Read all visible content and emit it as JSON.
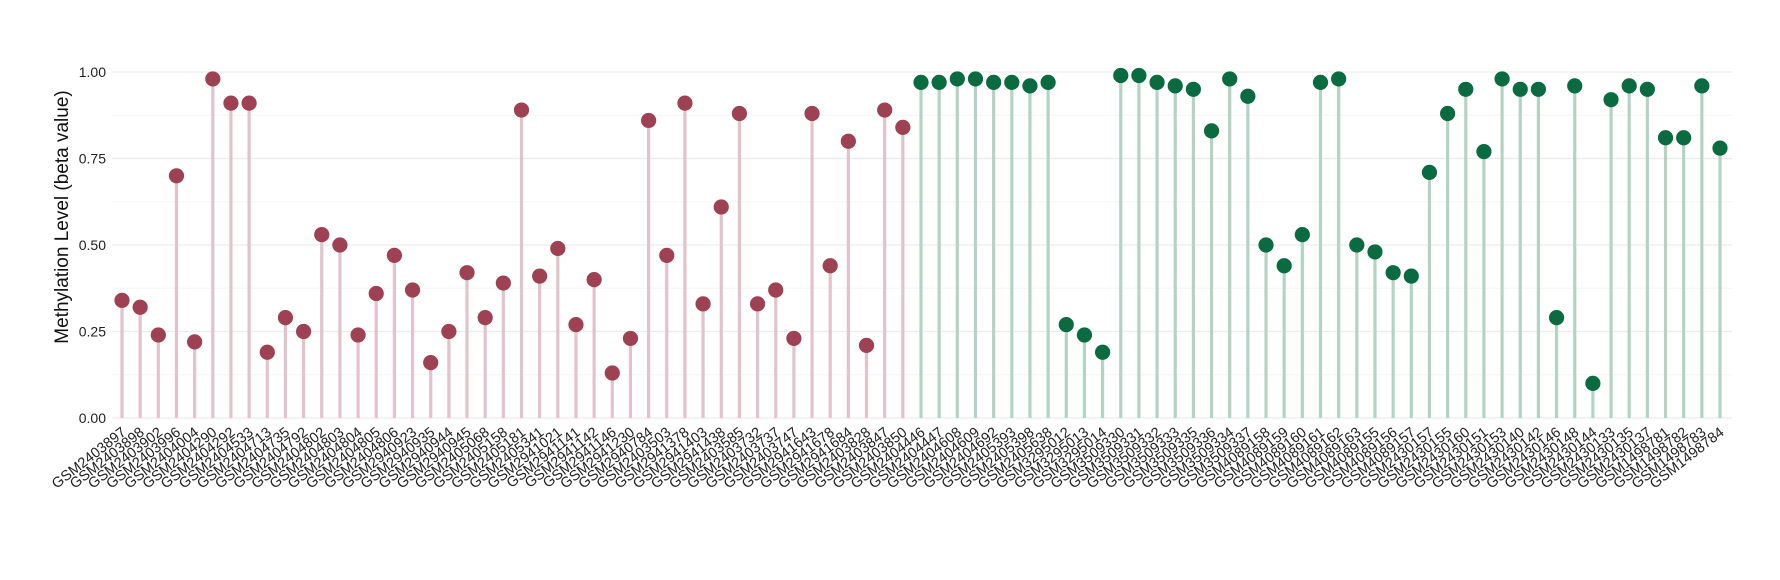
{
  "chart_data": {
    "type": "lollipop",
    "xlabel": "",
    "ylabel": "Methylation Level (beta value)",
    "ylim": [
      0,
      1
    ],
    "yticks": [
      "0.00",
      "0.25",
      "0.50",
      "0.75",
      "1.00"
    ],
    "grid": true,
    "legend": "none",
    "colors": {
      "group1_stem": "#e3c2cb",
      "group1_dot": "#9e4152",
      "group2_stem": "#b3d4c5",
      "group2_dot": "#0b6b40",
      "grid_major": "#ececec",
      "grid_minor": "#f6f6f6"
    },
    "series": [
      {
        "color_key": "group1",
        "categories": [
          "GSM2403897",
          "GSM2403898",
          "GSM2403902",
          "GSM2403996",
          "GSM2404004",
          "GSM2404290",
          "GSM2404292",
          "GSM2404533",
          "GSM2404713",
          "GSM2404735",
          "GSM2404792",
          "GSM2404802",
          "GSM2404803",
          "GSM2404804",
          "GSM2404805",
          "GSM2404806",
          "GSM2940923",
          "GSM2940935",
          "GSM2940944",
          "GSM2940945",
          "GSM2405068",
          "GSM2405158",
          "GSM2405181",
          "GSM2405341",
          "GSM2941021",
          "GSM2941141",
          "GSM2941142",
          "GSM2941146",
          "GSM2941230",
          "GSM2940784",
          "GSM2403503",
          "GSM2941378",
          "GSM2941403",
          "GSM2941438",
          "GSM2403585",
          "GSM2403732",
          "GSM2403737",
          "GSM2403747",
          "GSM2941643",
          "GSM2941678",
          "GSM2941684",
          "GSM2403828",
          "GSM2403847",
          "GSM2403850"
        ],
        "values": [
          0.34,
          0.32,
          0.24,
          0.7,
          0.22,
          0.98,
          0.91,
          0.91,
          0.19,
          0.29,
          0.25,
          0.53,
          0.5,
          0.24,
          0.36,
          0.47,
          0.37,
          0.16,
          0.25,
          0.42,
          0.29,
          0.39,
          0.89,
          0.41,
          0.49,
          0.27,
          0.4,
          0.13,
          0.23,
          0.86,
          0.47,
          0.91,
          0.33,
          0.61,
          0.88,
          0.33,
          0.37,
          0.23,
          0.88,
          0.44,
          0.8,
          0.21,
          0.89,
          0.84
        ]
      },
      {
        "color_key": "group2",
        "categories": [
          "GSM2404446",
          "GSM2404447",
          "GSM2404608",
          "GSM2404609",
          "GSM2404692",
          "GSM2405393",
          "GSM2405398",
          "GSM2405638",
          "GSM3295012",
          "GSM3295013",
          "GSM3295014",
          "GSM3509330",
          "GSM3509331",
          "GSM3509332",
          "GSM3509333",
          "GSM3509335",
          "GSM3509336",
          "GSM3509334",
          "GSM3509337",
          "GSM4089158",
          "GSM4089159",
          "GSM4089160",
          "GSM4089161",
          "GSM4089162",
          "GSM4089163",
          "GSM4089155",
          "GSM4089156",
          "GSM4089157",
          "GSM2430157",
          "GSM2430155",
          "GSM2430160",
          "GSM2430151",
          "GSM2430153",
          "GSM2430140",
          "GSM2430142",
          "GSM2430146",
          "GSM2430148",
          "GSM2430144",
          "GSM2430133",
          "GSM2430135",
          "GSM2430137",
          "GSM1498781",
          "GSM1498782",
          "GSM1498783",
          "GSM1498784"
        ],
        "values": [
          0.97,
          0.97,
          0.98,
          0.98,
          0.97,
          0.97,
          0.96,
          0.97,
          0.27,
          0.24,
          0.19,
          0.99,
          0.99,
          0.97,
          0.96,
          0.95,
          0.83,
          0.98,
          0.93,
          0.5,
          0.44,
          0.53,
          0.97,
          0.98,
          0.5,
          0.48,
          0.42,
          0.41,
          0.71,
          0.88,
          0.95,
          0.77,
          0.98,
          0.95,
          0.95,
          0.29,
          0.96,
          0.1,
          0.92,
          0.96,
          0.95,
          0.81,
          0.81,
          0.96,
          0.78
        ]
      }
    ]
  }
}
